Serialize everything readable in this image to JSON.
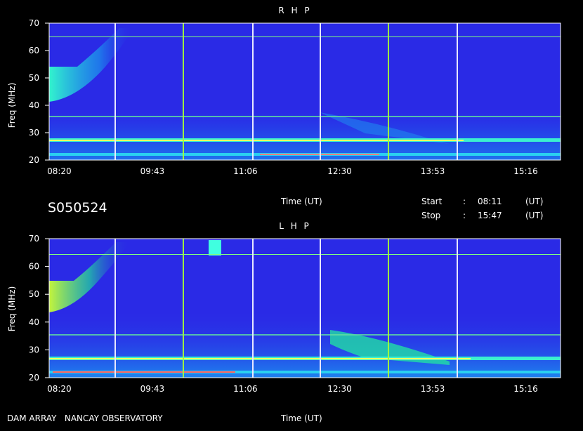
{
  "header": {
    "code": "S050524",
    "time_label": "Time (UT)",
    "start_label": "Start",
    "start_value": "08:11",
    "stop_label": "Stop",
    "stop_value": "15:47",
    "colon": ":",
    "ut": "(UT)"
  },
  "footer": {
    "observatory": "DAM ARRAY   NANCAY OBSERVATORY",
    "time_label": "Time (UT)"
  },
  "colors": {
    "background": "#000000",
    "spectrum_base": "#2a2ae6",
    "grid_vertical": "#e8e8ff",
    "grid_horizontal": "#80ff80",
    "marker_green": "#9cff40",
    "marker_red": "#ff3030"
  },
  "chart_data": [
    {
      "type": "heatmap",
      "title": "R H P",
      "ylabel": "Freq (MHz)",
      "xlabel": "Time (UT)",
      "yticks": [
        "20",
        "30",
        "40",
        "50",
        "60",
        "70"
      ],
      "ylim": [
        20,
        70
      ],
      "xticks": [
        "08:20",
        "09:43",
        "11:06",
        "12:30",
        "13:53",
        "15:16"
      ],
      "xlim": [
        "08:11",
        "15:47"
      ]
    },
    {
      "type": "heatmap",
      "title": "L H P",
      "ylabel": "Freq (MHz)",
      "xlabel": "Time (UT)",
      "yticks": [
        "20",
        "30",
        "40",
        "50",
        "60",
        "70"
      ],
      "ylim": [
        20,
        70
      ],
      "xticks": [
        "08:20",
        "09:43",
        "11:06",
        "12:30",
        "13:53",
        "15:16"
      ],
      "xlim": [
        "08:11",
        "15:47"
      ]
    }
  ]
}
